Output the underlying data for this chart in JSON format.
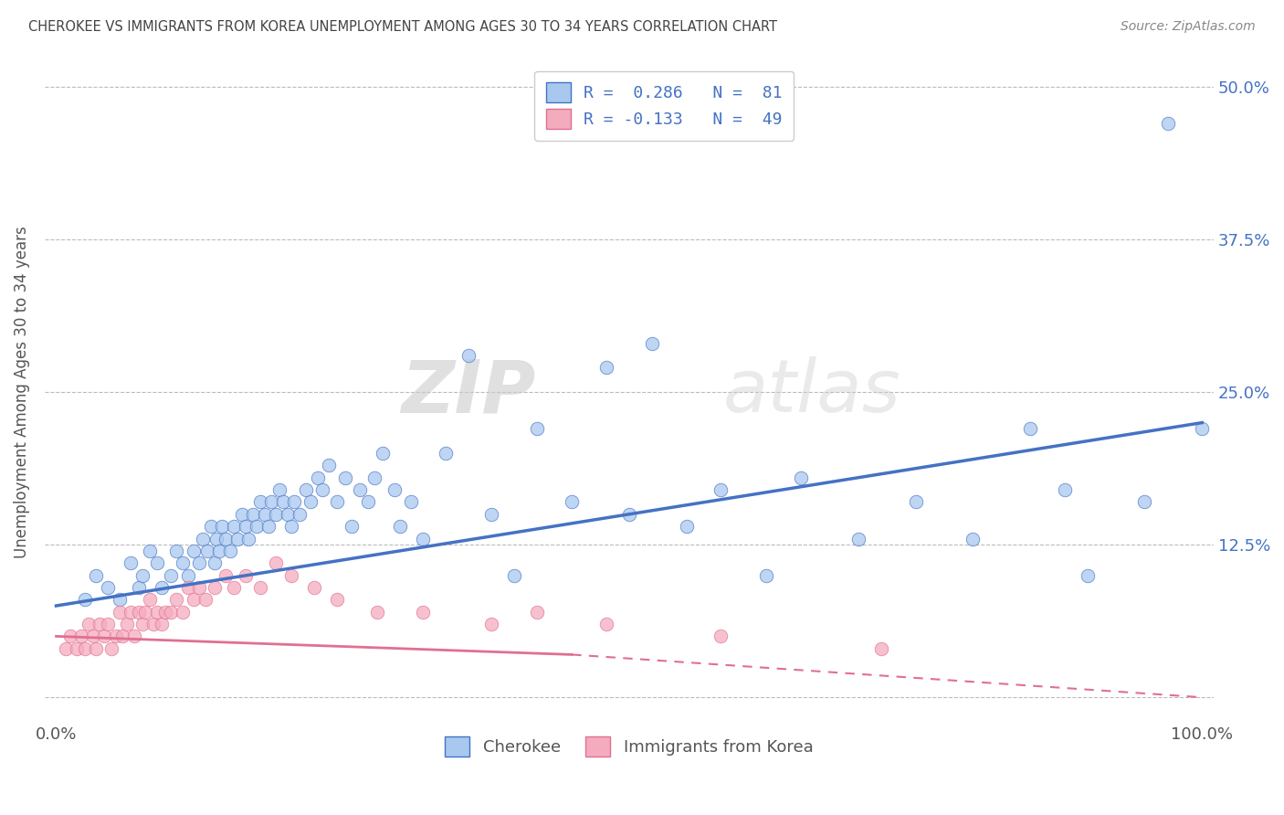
{
  "title": "CHEROKEE VS IMMIGRANTS FROM KOREA UNEMPLOYMENT AMONG AGES 30 TO 34 YEARS CORRELATION CHART",
  "source": "Source: ZipAtlas.com",
  "ylabel": "Unemployment Among Ages 30 to 34 years",
  "ylim": [
    -0.02,
    0.52
  ],
  "xlim": [
    -0.01,
    1.01
  ],
  "yticks": [
    0.0,
    0.125,
    0.25,
    0.375,
    0.5
  ],
  "ytick_labels_right": [
    "",
    "12.5%",
    "25.0%",
    "37.5%",
    "50.0%"
  ],
  "xtick_labels": [
    "0.0%",
    "100.0%"
  ],
  "watermark_zip": "ZIP",
  "watermark_atlas": "atlas",
  "legend_line1": "R =  0.286   N =  81",
  "legend_line2": "R = -0.133   N =  49",
  "legend_label1": "Cherokee",
  "legend_label2": "Immigrants from Korea",
  "color_blue": "#A8C8F0",
  "color_pink": "#F5ABBE",
  "color_blue_line": "#4472C4",
  "color_pink_line": "#E07090",
  "color_title": "#444444",
  "color_source": "#888888",
  "blue_x": [
    0.025,
    0.035,
    0.045,
    0.055,
    0.065,
    0.072,
    0.075,
    0.082,
    0.088,
    0.092,
    0.1,
    0.105,
    0.11,
    0.115,
    0.12,
    0.125,
    0.128,
    0.132,
    0.135,
    0.138,
    0.14,
    0.142,
    0.145,
    0.148,
    0.152,
    0.155,
    0.158,
    0.162,
    0.165,
    0.168,
    0.172,
    0.175,
    0.178,
    0.182,
    0.185,
    0.188,
    0.192,
    0.195,
    0.198,
    0.202,
    0.205,
    0.208,
    0.212,
    0.218,
    0.222,
    0.228,
    0.232,
    0.238,
    0.245,
    0.252,
    0.258,
    0.265,
    0.272,
    0.278,
    0.285,
    0.295,
    0.3,
    0.31,
    0.32,
    0.34,
    0.36,
    0.38,
    0.4,
    0.42,
    0.45,
    0.48,
    0.5,
    0.52,
    0.55,
    0.58,
    0.62,
    0.65,
    0.7,
    0.75,
    0.8,
    0.85,
    0.88,
    0.9,
    0.95,
    0.97,
    1.0
  ],
  "blue_y": [
    0.08,
    0.1,
    0.09,
    0.08,
    0.11,
    0.09,
    0.1,
    0.12,
    0.11,
    0.09,
    0.1,
    0.12,
    0.11,
    0.1,
    0.12,
    0.11,
    0.13,
    0.12,
    0.14,
    0.11,
    0.13,
    0.12,
    0.14,
    0.13,
    0.12,
    0.14,
    0.13,
    0.15,
    0.14,
    0.13,
    0.15,
    0.14,
    0.16,
    0.15,
    0.14,
    0.16,
    0.15,
    0.17,
    0.16,
    0.15,
    0.14,
    0.16,
    0.15,
    0.17,
    0.16,
    0.18,
    0.17,
    0.19,
    0.16,
    0.18,
    0.14,
    0.17,
    0.16,
    0.18,
    0.2,
    0.17,
    0.14,
    0.16,
    0.13,
    0.2,
    0.28,
    0.15,
    0.1,
    0.22,
    0.16,
    0.27,
    0.15,
    0.29,
    0.14,
    0.17,
    0.1,
    0.18,
    0.13,
    0.16,
    0.13,
    0.22,
    0.17,
    0.1,
    0.16,
    0.47,
    0.22
  ],
  "pink_x": [
    0.008,
    0.012,
    0.018,
    0.022,
    0.025,
    0.028,
    0.032,
    0.035,
    0.038,
    0.042,
    0.045,
    0.048,
    0.052,
    0.055,
    0.058,
    0.062,
    0.065,
    0.068,
    0.072,
    0.075,
    0.078,
    0.082,
    0.085,
    0.088,
    0.092,
    0.095,
    0.1,
    0.105,
    0.11,
    0.115,
    0.12,
    0.125,
    0.13,
    0.138,
    0.148,
    0.155,
    0.165,
    0.178,
    0.192,
    0.205,
    0.225,
    0.245,
    0.28,
    0.32,
    0.38,
    0.42,
    0.48,
    0.58,
    0.72
  ],
  "pink_y": [
    0.04,
    0.05,
    0.04,
    0.05,
    0.04,
    0.06,
    0.05,
    0.04,
    0.06,
    0.05,
    0.06,
    0.04,
    0.05,
    0.07,
    0.05,
    0.06,
    0.07,
    0.05,
    0.07,
    0.06,
    0.07,
    0.08,
    0.06,
    0.07,
    0.06,
    0.07,
    0.07,
    0.08,
    0.07,
    0.09,
    0.08,
    0.09,
    0.08,
    0.09,
    0.1,
    0.09,
    0.1,
    0.09,
    0.11,
    0.1,
    0.09,
    0.08,
    0.07,
    0.07,
    0.06,
    0.07,
    0.06,
    0.05,
    0.04
  ],
  "blue_trend": [
    0.0,
    1.0,
    0.075,
    0.225
  ],
  "pink_trend_solid": [
    0.0,
    0.45,
    0.05,
    0.035
  ],
  "pink_trend_dashed": [
    0.45,
    1.0,
    0.035,
    0.0
  ],
  "figsize": [
    14.06,
    8.92
  ],
  "dpi": 100
}
